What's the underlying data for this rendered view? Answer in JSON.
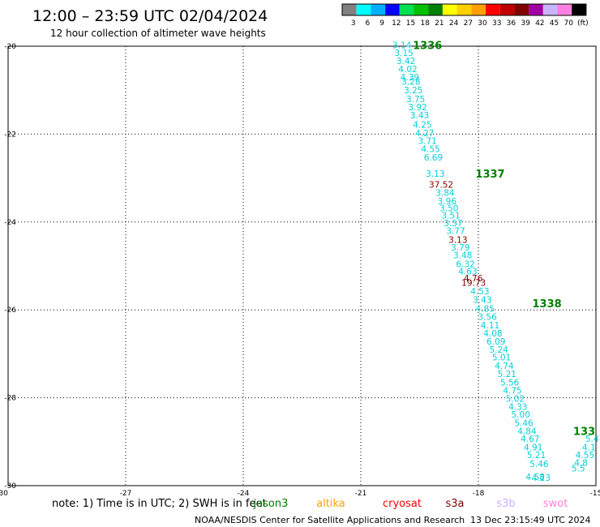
{
  "header": {
    "title": "12:00 – 23:59 UTC 02/04/2024",
    "subtitle": "12 hour collection of altimeter wave heights"
  },
  "colorbar": {
    "colors": [
      "#808080",
      "#00ffff",
      "#00b0ff",
      "#0000ff",
      "#00e050",
      "#00c000",
      "#008000",
      "#ffff00",
      "#ffd000",
      "#ffa000",
      "#ff0000",
      "#c00000",
      "#800000",
      "#a000a0",
      "#c8b4ff",
      "#ff80e0",
      "#000000"
    ],
    "labels": [
      "3",
      "6",
      "9",
      "12",
      "15",
      "18",
      "21",
      "24",
      "27",
      "30",
      "33",
      "36",
      "39",
      "42",
      "45",
      "70",
      "(ft)"
    ]
  },
  "footer": {
    "note_prefix": "note: 1) Time is in UTC; 2) SWH is in feet",
    "satellites": [
      {
        "name": "jason3",
        "color": "#008000"
      },
      {
        "name": "altika",
        "color": "#ffa000"
      },
      {
        "name": "cryosat",
        "color": "#ff0000"
      },
      {
        "name": "s3a",
        "color": "#800000"
      },
      {
        "name": "s3b",
        "color": "#c8b4ff"
      },
      {
        "name": "swot",
        "color": "#ff80e0"
      }
    ],
    "credit": "NOAA/NESDIS Center for Satellite Applications and Research",
    "timestamp": "13 Dec 23:15:49 UTC 2024"
  },
  "chart_data": {
    "type": "scatter",
    "xlim": [
      -30,
      -15
    ],
    "ylim": [
      -30,
      -20
    ],
    "x_ticks": [
      "-30",
      "-27",
      "-24",
      "-21",
      "-18",
      "-15"
    ],
    "y_ticks": [
      "-30",
      "-28",
      "-26",
      "-24",
      "-22",
      "-20"
    ],
    "grid": true,
    "pass_labels": [
      {
        "text": "1336",
        "lon": -19.3,
        "lat": -19.97
      },
      {
        "text": "1337",
        "lon": -17.7,
        "lat": -22.9
      },
      {
        "text": "1338",
        "lon": -16.25,
        "lat": -25.85
      },
      {
        "text": "133",
        "lon": -15.3,
        "lat": -28.75
      }
    ],
    "points": [
      {
        "text": "3.14",
        "lon": -19.95,
        "lat": -19.97
      },
      {
        "text": "3.15",
        "lon": -19.9,
        "lat": -20.15
      },
      {
        "text": "3.42",
        "lon": -19.85,
        "lat": -20.33
      },
      {
        "text": "4.02",
        "lon": -19.8,
        "lat": -20.52
      },
      {
        "text": "4.39",
        "lon": -19.75,
        "lat": -20.7
      },
      {
        "text": "3.28",
        "lon": -19.72,
        "lat": -20.8
      },
      {
        "text": "3.25",
        "lon": -19.66,
        "lat": -21.0
      },
      {
        "text": "3.75",
        "lon": -19.6,
        "lat": -21.2
      },
      {
        "text": "3.92",
        "lon": -19.55,
        "lat": -21.38
      },
      {
        "text": "3.43",
        "lon": -19.5,
        "lat": -21.57
      },
      {
        "text": "4.25",
        "lon": -19.43,
        "lat": -21.78
      },
      {
        "text": "4.27",
        "lon": -19.37,
        "lat": -21.97
      },
      {
        "text": "3.71",
        "lon": -19.3,
        "lat": -22.15
      },
      {
        "text": "4.55",
        "lon": -19.22,
        "lat": -22.33
      },
      {
        "text": "6.69",
        "lon": -19.15,
        "lat": -22.53
      },
      {
        "text": "3.13",
        "lon": -19.1,
        "lat": -22.9
      },
      {
        "text": "37.52",
        "lon": -18.95,
        "lat": -23.15,
        "color": "#800000"
      },
      {
        "text": "3.84",
        "lon": -18.85,
        "lat": -23.33
      },
      {
        "text": "3.96",
        "lon": -18.8,
        "lat": -23.52
      },
      {
        "text": "3.50",
        "lon": -18.75,
        "lat": -23.68
      },
      {
        "text": "3.51",
        "lon": -18.7,
        "lat": -23.85
      },
      {
        "text": "3.57",
        "lon": -18.64,
        "lat": -24.02
      },
      {
        "text": "3.77",
        "lon": -18.58,
        "lat": -24.2
      },
      {
        "text": "3.13",
        "lon": -18.52,
        "lat": -24.4,
        "color": "#800000"
      },
      {
        "text": "3.79",
        "lon": -18.46,
        "lat": -24.58
      },
      {
        "text": "3.48",
        "lon": -18.4,
        "lat": -24.75
      },
      {
        "text": "6.32",
        "lon": -18.33,
        "lat": -24.95
      },
      {
        "text": "4.63",
        "lon": -18.27,
        "lat": -25.12
      },
      {
        "text": "4.76",
        "lon": -18.13,
        "lat": -25.28,
        "color": "#800000"
      },
      {
        "text": "19.73",
        "lon": -18.12,
        "lat": -25.38,
        "color": "#800000"
      },
      {
        "text": "4.53",
        "lon": -17.96,
        "lat": -25.57
      },
      {
        "text": "3.43",
        "lon": -17.9,
        "lat": -25.77
      },
      {
        "text": "4.85",
        "lon": -17.83,
        "lat": -25.97
      },
      {
        "text": "3.56",
        "lon": -17.77,
        "lat": -26.15
      },
      {
        "text": "4.11",
        "lon": -17.7,
        "lat": -26.35
      },
      {
        "text": "4.08",
        "lon": -17.63,
        "lat": -26.53
      },
      {
        "text": "6.09",
        "lon": -17.55,
        "lat": -26.72
      },
      {
        "text": "5.24",
        "lon": -17.48,
        "lat": -26.9
      },
      {
        "text": "5.01",
        "lon": -17.41,
        "lat": -27.08
      },
      {
        "text": "4.74",
        "lon": -17.34,
        "lat": -27.27
      },
      {
        "text": "5.21",
        "lon": -17.27,
        "lat": -27.45
      },
      {
        "text": "5.56",
        "lon": -17.2,
        "lat": -27.65
      },
      {
        "text": "4.75",
        "lon": -17.13,
        "lat": -27.83
      },
      {
        "text": "5.02",
        "lon": -17.06,
        "lat": -28.02
      },
      {
        "text": "4.33",
        "lon": -16.99,
        "lat": -28.2
      },
      {
        "text": "5.00",
        "lon": -16.92,
        "lat": -28.38
      },
      {
        "text": "5.46",
        "lon": -16.84,
        "lat": -28.57
      },
      {
        "text": "4.84",
        "lon": -16.76,
        "lat": -28.75
      },
      {
        "text": "4.67",
        "lon": -16.68,
        "lat": -28.93
      },
      {
        "text": "4.91",
        "lon": -16.6,
        "lat": -29.12
      },
      {
        "text": "5.21",
        "lon": -16.52,
        "lat": -29.3
      },
      {
        "text": "5.46",
        "lon": -16.45,
        "lat": -29.5
      },
      {
        "text": "4.58",
        "lon": -16.55,
        "lat": -29.8
      },
      {
        "text": "4.23",
        "lon": -16.4,
        "lat": -29.82
      },
      {
        "text": "5.4",
        "lon": -15.1,
        "lat": -28.93
      },
      {
        "text": "4.1",
        "lon": -15.18,
        "lat": -29.12
      },
      {
        "text": "4.55",
        "lon": -15.28,
        "lat": -29.3
      },
      {
        "text": "4.8",
        "lon": -15.38,
        "lat": -29.47
      },
      {
        "text": "5.5",
        "lon": -15.45,
        "lat": -29.6
      }
    ]
  }
}
